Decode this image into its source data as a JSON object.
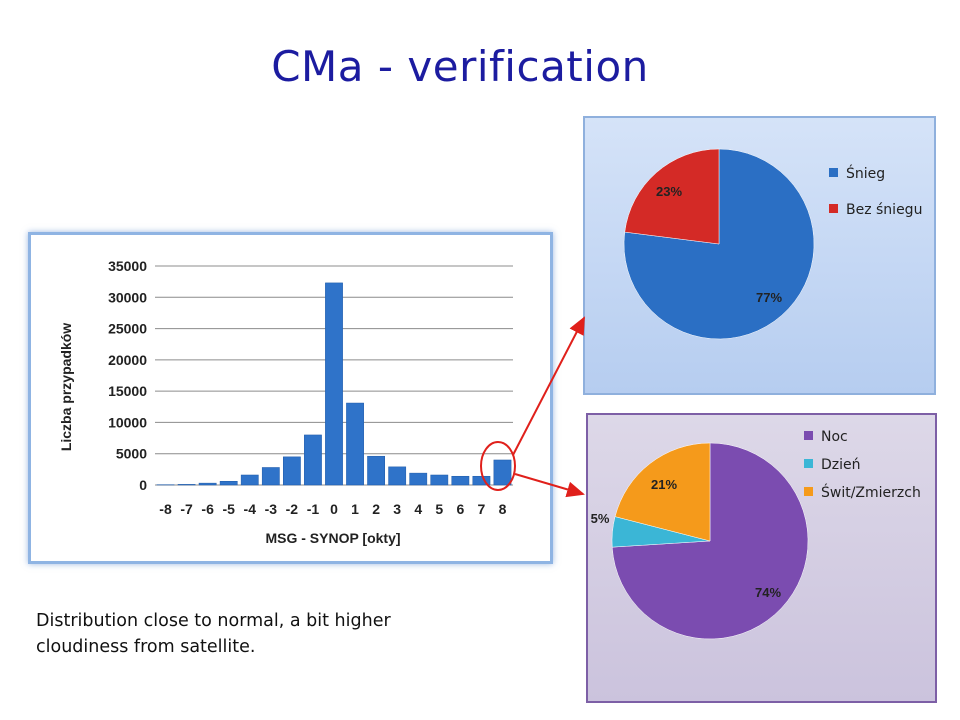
{
  "title": "CMa - verification",
  "caption": "Distribution close to normal, a bit higher cloudiness from satellite.",
  "colors": {
    "title": "#1c1ca0",
    "bar": "#2f73c9",
    "snow": "#2b6fc4",
    "no_snow": "#d42a26",
    "night": "#7b4cb0",
    "day": "#3bb6d6",
    "twilight": "#f59a1b",
    "arrow": "#e0201b"
  },
  "chart_data": [
    {
      "type": "bar",
      "title": "",
      "xlabel": "MSG - SYNOP [okty]",
      "ylabel": "Liczba przypadków",
      "ylim": [
        0,
        35000
      ],
      "yticks": [
        "0",
        "5000",
        "10000",
        "15000",
        "20000",
        "25000",
        "30000",
        "35000"
      ],
      "categories": [
        "-8",
        "-7",
        "-6",
        "-5",
        "-4",
        "-3",
        "-2",
        "-1",
        "0",
        "1",
        "2",
        "3",
        "4",
        "5",
        "6",
        "7",
        "8"
      ],
      "values": [
        50,
        100,
        300,
        600,
        1600,
        2800,
        4500,
        8000,
        32300,
        13100,
        4600,
        2900,
        1900,
        1600,
        1400,
        1400,
        4000
      ],
      "grid": true
    },
    {
      "type": "pie",
      "labels": [
        "Śnieg",
        "Bez śniegu"
      ],
      "values": [
        77,
        23
      ],
      "data_labels": [
        "77%",
        "23%"
      ],
      "legend": "right"
    },
    {
      "type": "pie",
      "labels": [
        "Noc",
        "Dzień",
        "Świt/Zmierzch"
      ],
      "values": [
        74,
        5,
        21
      ],
      "data_labels": [
        "74%",
        "5%",
        "21%"
      ],
      "legend": "right"
    }
  ]
}
